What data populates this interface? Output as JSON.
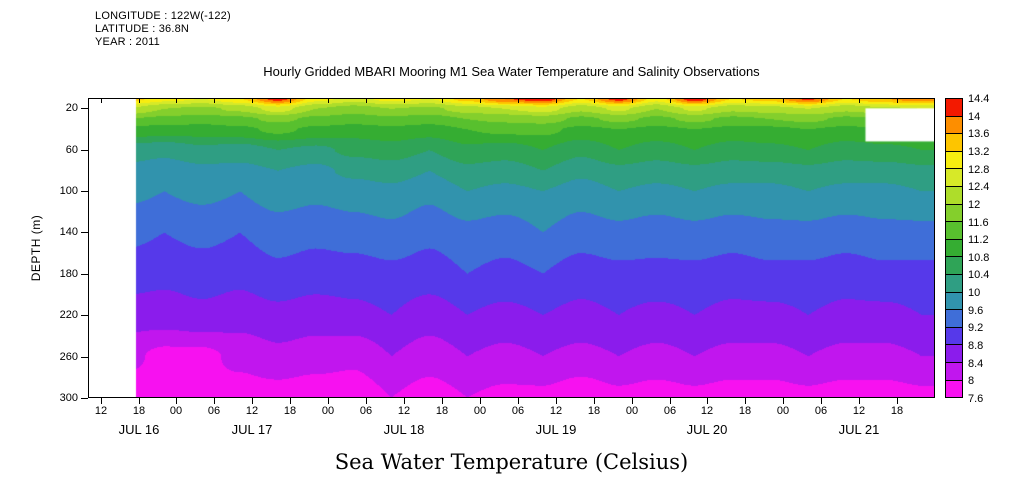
{
  "meta": {
    "longitude": "LONGITUDE : 122W(-122)",
    "latitude": "LATITUDE : 36.8N",
    "year": "YEAR : 2011"
  },
  "chart_data": {
    "type": "heatmap",
    "title": "Hourly Gridded MBARI Mooring M1 Sea Water Temperature and Salinity Observations",
    "caption": "Sea Water Temperature (Celsius)",
    "ylabel": "DEPTH (m)",
    "y_ticks": [
      20,
      60,
      100,
      140,
      180,
      220,
      260,
      300
    ],
    "depth_domain": [
      10,
      300
    ],
    "x_domain_hours": [
      -2,
      132
    ],
    "x_tick_hours": [
      0,
      6,
      12,
      18,
      24,
      30,
      36,
      42,
      48,
      54,
      60,
      66,
      72,
      78,
      84,
      90,
      96,
      102,
      108,
      114,
      120,
      126
    ],
    "x_tick_labels": [
      "12",
      "18",
      "00",
      "06",
      "12",
      "18",
      "00",
      "06",
      "12",
      "18",
      "00",
      "06",
      "12",
      "18",
      "00",
      "06",
      "12",
      "18",
      "00",
      "06",
      "12",
      "18"
    ],
    "x_date_labels": [
      {
        "label": "JUL 16",
        "t": 6
      },
      {
        "label": "JUL 17",
        "t": 24
      },
      {
        "label": "JUL 18",
        "t": 48
      },
      {
        "label": "JUL 19",
        "t": 72
      },
      {
        "label": "JUL 20",
        "t": 96
      },
      {
        "label": "JUL 21",
        "t": 120
      }
    ],
    "data_start_hour": 5.5,
    "missing_patch": {
      "t_start": 121,
      "t_end": 132,
      "depth_top": 20,
      "depth_bottom": 52
    },
    "colorbar": {
      "level_min": 7.6,
      "level_step": 0.4,
      "labels_top_to_bottom": [
        "14.4",
        "14",
        "13.6",
        "13.2",
        "12.8",
        "12.4",
        "12",
        "11.6",
        "11.2",
        "10.8",
        "10.4",
        "10",
        "9.6",
        "9.2",
        "8.8",
        "8.4",
        "8",
        "7.6"
      ],
      "colors_top_to_bottom": [
        "#f31900",
        "#fd8e00",
        "#fdc500",
        "#f7ed10",
        "#d7e928",
        "#aedd2a",
        "#84cf2c",
        "#58c02e",
        "#35ad32",
        "#2fa457",
        "#2f9e83",
        "#3193ad",
        "#3f6ed8",
        "#5639ea",
        "#8b1cec",
        "#c116ee",
        "#f711f0"
      ]
    },
    "grid": {
      "times_hours": [
        4,
        10,
        16,
        22,
        28,
        34,
        40,
        46,
        52,
        58,
        64,
        70,
        76,
        82,
        88,
        94,
        100,
        106,
        112,
        118,
        124,
        130
      ],
      "depths_m": [
        10,
        20,
        30,
        40,
        60,
        80,
        100,
        140,
        180,
        220,
        260,
        300
      ],
      "temps_c": [
        [
          13.4,
          13.0,
          12.8,
          13.2,
          14.2,
          13.0,
          12.6,
          13.0,
          12.8,
          13.4,
          14.0,
          14.3,
          13.2,
          14.2,
          13.0,
          14.3,
          13.2,
          13.4,
          14.1,
          13.2,
          13.6,
          13.9
        ],
        [
          12.4,
          12.0,
          11.9,
          12.1,
          12.6,
          12.0,
          11.8,
          12.0,
          11.9,
          12.2,
          12.4,
          12.6,
          12.1,
          12.5,
          12.0,
          12.5,
          12.1,
          12.2,
          12.4,
          12.1,
          12.3,
          12.4
        ],
        [
          11.6,
          11.5,
          11.4,
          11.5,
          11.7,
          11.5,
          11.4,
          11.5,
          11.4,
          11.6,
          11.7,
          11.8,
          11.5,
          11.7,
          11.5,
          11.7,
          11.5,
          11.6,
          11.7,
          11.5,
          11.6,
          11.7
        ],
        [
          11.1,
          11.0,
          11.0,
          11.1,
          11.3,
          11.1,
          11.0,
          11.1,
          11.0,
          11.2,
          11.3,
          11.3,
          11.1,
          11.2,
          11.1,
          11.2,
          11.1,
          11.1,
          11.2,
          11.1,
          11.2,
          11.2
        ],
        [
          10.2,
          10.1,
          10.3,
          10.2,
          10.4,
          10.3,
          10.5,
          10.6,
          10.4,
          10.7,
          10.6,
          10.8,
          10.5,
          10.8,
          10.6,
          10.8,
          10.6,
          10.7,
          10.8,
          10.6,
          10.7,
          10.8
        ],
        [
          9.9,
          9.8,
          9.9,
          9.9,
          10.0,
          9.9,
          10.1,
          10.2,
          10.0,
          10.3,
          10.2,
          10.4,
          10.1,
          10.3,
          10.2,
          10.3,
          10.2,
          10.2,
          10.3,
          10.2,
          10.2,
          10.3
        ],
        [
          9.7,
          9.6,
          9.7,
          9.6,
          9.8,
          9.7,
          9.8,
          9.9,
          9.7,
          10.0,
          9.9,
          10.0,
          9.8,
          10.0,
          9.9,
          10.0,
          9.9,
          9.9,
          10.0,
          9.9,
          9.9,
          10.0
        ],
        [
          9.3,
          9.2,
          9.3,
          9.2,
          9.4,
          9.3,
          9.4,
          9.5,
          9.3,
          9.5,
          9.4,
          9.6,
          9.4,
          9.5,
          9.4,
          9.5,
          9.4,
          9.5,
          9.5,
          9.4,
          9.5,
          9.5
        ],
        [
          9.0,
          8.9,
          9.0,
          8.9,
          9.1,
          9.0,
          9.0,
          9.1,
          9.0,
          9.2,
          9.1,
          9.2,
          9.0,
          9.1,
          9.1,
          9.1,
          9.0,
          9.1,
          9.1,
          9.0,
          9.1,
          9.1
        ],
        [
          8.6,
          8.6,
          8.7,
          8.6,
          8.7,
          8.6,
          8.7,
          8.8,
          8.6,
          8.8,
          8.7,
          8.8,
          8.7,
          8.8,
          8.7,
          8.8,
          8.7,
          8.7,
          8.8,
          8.7,
          8.7,
          8.8
        ],
        [
          8.1,
          7.9,
          7.9,
          8.1,
          8.3,
          8.2,
          8.1,
          8.4,
          8.2,
          8.4,
          8.3,
          8.4,
          8.3,
          8.4,
          8.3,
          8.4,
          8.3,
          8.3,
          8.4,
          8.3,
          8.3,
          8.4
        ],
        [
          7.8,
          7.7,
          7.9,
          7.8,
          7.8,
          7.7,
          7.7,
          8.0,
          7.8,
          8.0,
          7.9,
          7.9,
          7.7,
          7.9,
          7.8,
          7.9,
          7.8,
          7.8,
          7.9,
          7.8,
          7.8,
          7.9
        ]
      ]
    }
  }
}
